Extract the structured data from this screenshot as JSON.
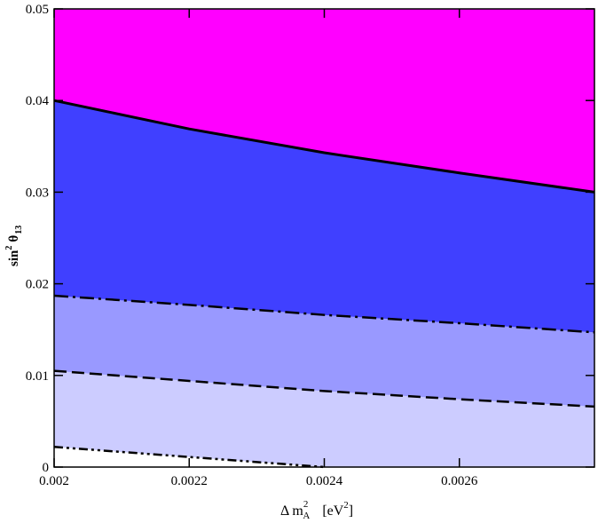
{
  "chart_data": {
    "type": "area",
    "background_color": "#ff00ff",
    "x_label": [
      "Δ m",
      "2",
      "A",
      "[eV",
      "2",
      "]"
    ],
    "y_label": [
      "sin",
      "2",
      "θ",
      "13"
    ],
    "x": [
      0.002,
      0.0022,
      0.0024,
      0.0026,
      0.0028
    ],
    "series": [
      {
        "color": "#4040ff",
        "line_style": "solid",
        "values": [
          0.04,
          0.0369,
          0.0343,
          0.0321,
          0.03
        ]
      },
      {
        "color": "#9999ff",
        "line_style": "dashdot",
        "values": [
          0.0187,
          0.0177,
          0.0166,
          0.0157,
          0.0147
        ]
      },
      {
        "color": "#ccccff",
        "line_style": "dashed",
        "values": [
          0.0105,
          0.0094,
          0.0083,
          0.0074,
          0.0066
        ]
      },
      {
        "color": "#ffffff",
        "line_style": "dashdotdot",
        "values": [
          0.0022,
          0.0011,
          0,
          null,
          null
        ]
      }
    ],
    "xlim": [
      0.002,
      0.0028
    ],
    "xticks": [
      0.002,
      0.0022,
      0.0024,
      0.0026
    ],
    "ylim": [
      0,
      0.05
    ],
    "yticks": [
      0,
      0.01,
      0.02,
      0.03,
      0.04,
      0.05
    ]
  }
}
